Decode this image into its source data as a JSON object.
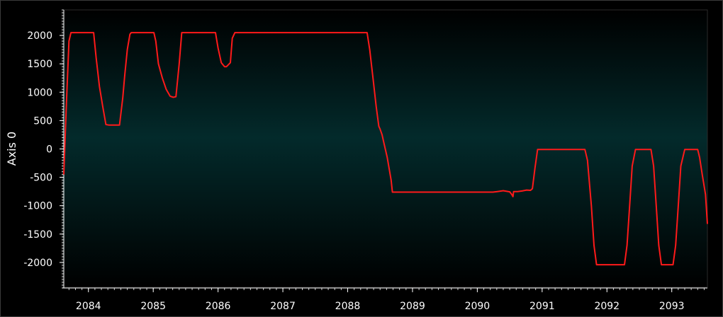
{
  "chart_data": {
    "type": "line",
    "xlabel": "",
    "ylabel": "Axis 0",
    "xlim": [
      2083.62,
      2093.55
    ],
    "ylim": [
      -2450,
      2450
    ],
    "x_ticks": [
      2084,
      2085,
      2086,
      2087,
      2088,
      2089,
      2090,
      2091,
      2092,
      2093
    ],
    "y_ticks": [
      2000,
      1500,
      1000,
      500,
      0,
      -500,
      -1000,
      -1500,
      -2000
    ],
    "grid": false,
    "legend": "none",
    "colors": {
      "background_edge": "#000000",
      "background_center": "#032a2b",
      "line": "#ff1a1a",
      "axis": "#ffffff",
      "frame": "#3a3a3a"
    },
    "series": [
      {
        "name": "",
        "color": "#ff1a1a",
        "x": [
          2083.62,
          2083.66,
          2083.7,
          2083.73,
          2083.76,
          2084.08,
          2084.12,
          2084.17,
          2084.22,
          2084.27,
          2084.32,
          2084.36,
          2084.48,
          2084.53,
          2084.56,
          2084.6,
          2084.64,
          2084.66,
          2085.01,
          2085.04,
          2085.08,
          2085.14,
          2085.2,
          2085.26,
          2085.31,
          2085.35,
          2085.4,
          2085.44,
          2085.46,
          2085.96,
          2086.0,
          2086.05,
          2086.1,
          2086.13,
          2086.19,
          2086.22,
          2086.26,
          2088.3,
          2088.34,
          2088.39,
          2088.44,
          2088.48,
          2088.5,
          2088.53,
          2088.56,
          2088.61,
          2088.67,
          2088.69,
          2090.24,
          2090.31,
          2090.4,
          2090.5,
          2090.53,
          2090.55,
          2090.56,
          2090.62,
          2090.69,
          2090.76,
          2090.82,
          2090.85,
          2090.89,
          2090.93,
          2091.66,
          2091.7,
          2091.76,
          2091.8,
          2091.84,
          2092.27,
          2092.31,
          2092.35,
          2092.39,
          2092.44,
          2092.68,
          2092.72,
          2092.76,
          2092.8,
          2092.84,
          2093.02,
          2093.06,
          2093.1,
          2093.14,
          2093.2,
          2093.4,
          2093.43,
          2093.47,
          2093.52,
          2093.55
        ],
        "y": [
          -450,
          800,
          1900,
          2050,
          2050,
          2050,
          1600,
          1100,
          750,
          430,
          420,
          420,
          420,
          900,
          1300,
          1750,
          2020,
          2050,
          2050,
          1900,
          1500,
          1250,
          1050,
          930,
          910,
          920,
          1500,
          2050,
          2050,
          2050,
          1780,
          1520,
          1450,
          1450,
          1520,
          1950,
          2050,
          2050,
          1750,
          1250,
          750,
          400,
          350,
          250,
          100,
          -150,
          -550,
          -760,
          -760,
          -750,
          -735,
          -755,
          -800,
          -840,
          -750,
          -750,
          -740,
          -725,
          -730,
          -700,
          -330,
          -10,
          -10,
          -200,
          -1000,
          -1700,
          -2040,
          -2040,
          -1700,
          -1000,
          -300,
          -10,
          -10,
          -300,
          -1000,
          -1700,
          -2040,
          -2040,
          -1700,
          -1000,
          -300,
          -10,
          -10,
          -150,
          -450,
          -800,
          -1320
        ]
      }
    ]
  }
}
